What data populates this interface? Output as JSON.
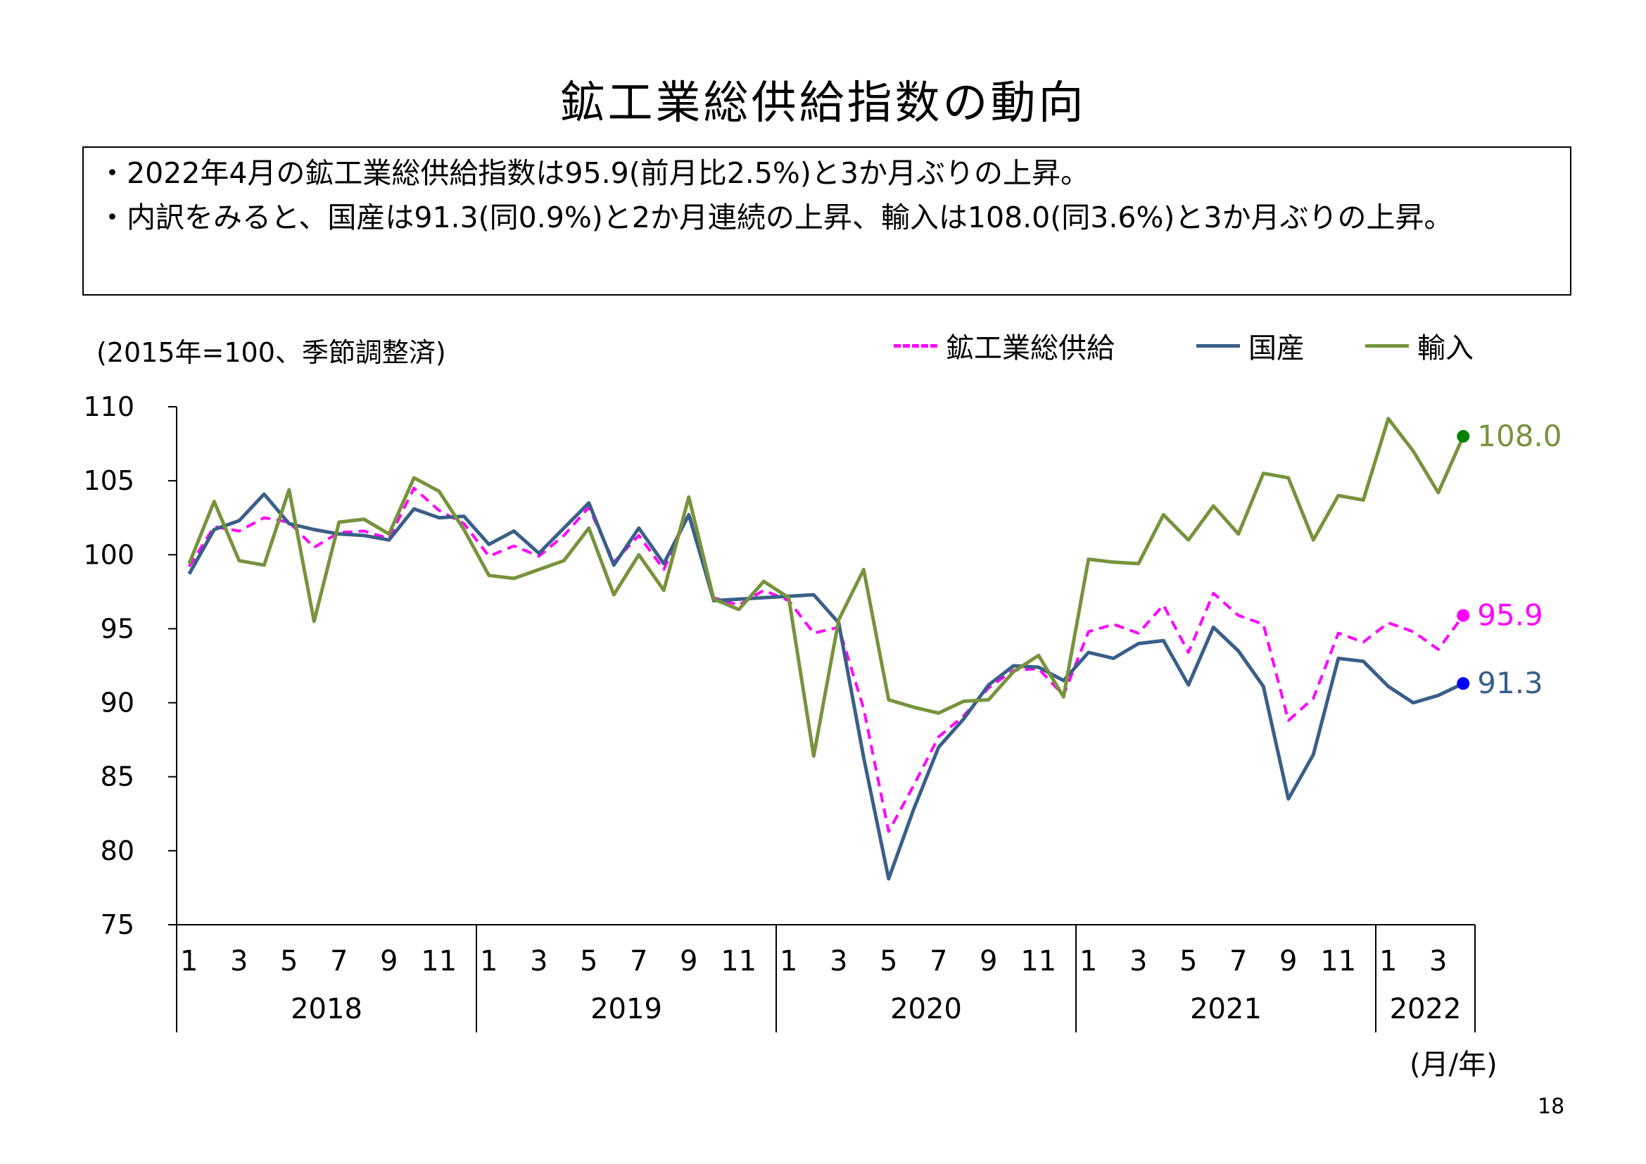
{
  "title": "鉱工業総供給指数の動向",
  "summary": [
    "・2022年4月の鉱工業総供給指数は95.9(前月比2.5%)と3か月ぶりの上昇。",
    "・内訳をみると、国産は91.3(同0.9%)と2か月連続の上昇、輸入は108.0(同3.6%)と3か月ぶりの上昇。"
  ],
  "page_number": "18",
  "chart_data": {
    "type": "line",
    "unit_label": "(2015年=100、季節調整済)",
    "xlabel": "(月/年)",
    "ylim": [
      75,
      110
    ],
    "yticks": [
      "110",
      "105",
      "100",
      "95",
      "90",
      "85",
      "80",
      "75"
    ],
    "month_ticks": [
      "1",
      "3",
      "5",
      "7",
      "9",
      "11",
      "1",
      "3",
      "5",
      "7",
      "9",
      "11",
      "1",
      "3",
      "5",
      "7",
      "9",
      "11",
      "1",
      "3",
      "5",
      "7",
      "9",
      "11",
      "1",
      "3"
    ],
    "years": [
      "2018",
      "2019",
      "2020",
      "2021",
      "2022"
    ],
    "series": [
      {
        "name": "鉱工業総供給",
        "color": "#ff00ff",
        "dash": true,
        "end_label": "95.9",
        "values": [
          99.2,
          101.9,
          101.6,
          102.5,
          102.2,
          100.5,
          101.5,
          101.6,
          101.1,
          104.5,
          103.0,
          102.1,
          99.9,
          100.6,
          99.9,
          101.3,
          103.2,
          99.5,
          101.3,
          99.0,
          102.8,
          97.1,
          96.6,
          97.6,
          96.9,
          94.7,
          95.1,
          89.6,
          81.3,
          84.4,
          87.7,
          89.1,
          91.0,
          92.2,
          92.3,
          90.5,
          94.8,
          95.3,
          94.7,
          96.6,
          93.4,
          97.4,
          95.9,
          95.3,
          88.8,
          90.3,
          94.7,
          94.1,
          95.4,
          94.8,
          93.6,
          95.9
        ]
      },
      {
        "name": "国産",
        "color": "#3a5f88",
        "dash": false,
        "end_label": "91.3",
        "values": [
          98.7,
          101.7,
          102.3,
          104.1,
          102.1,
          101.7,
          101.4,
          101.3,
          101.0,
          103.1,
          102.5,
          102.6,
          100.7,
          101.6,
          100.1,
          101.8,
          103.5,
          99.3,
          101.8,
          99.4,
          102.7,
          96.9,
          97.0,
          97.1,
          97.2,
          97.3,
          95.4,
          86.3,
          78.1,
          82.8,
          87.0,
          88.9,
          91.2,
          92.5,
          92.4,
          91.5,
          93.4,
          93.0,
          94.0,
          94.2,
          91.2,
          95.1,
          93.5,
          91.1,
          83.5,
          86.5,
          93.0,
          92.8,
          91.1,
          90.0,
          90.5,
          91.3
        ]
      },
      {
        "name": "輸入",
        "color": "#77933c",
        "dash": false,
        "end_label": "108.0",
        "values": [
          99.4,
          103.6,
          99.6,
          99.3,
          104.4,
          95.5,
          102.2,
          102.4,
          101.4,
          105.2,
          104.3,
          101.7,
          98.6,
          98.4,
          99.0,
          99.6,
          101.8,
          97.3,
          100.0,
          97.6,
          103.9,
          97.0,
          96.3,
          98.2,
          97.1,
          86.4,
          95.6,
          99.0,
          90.2,
          89.7,
          89.3,
          90.1,
          90.2,
          92.1,
          93.2,
          90.4,
          99.7,
          99.5,
          99.4,
          102.7,
          101.0,
          103.3,
          101.4,
          105.5,
          105.2,
          101.0,
          104.0,
          103.7,
          109.2,
          107.0,
          104.2,
          108.0
        ]
      }
    ]
  }
}
